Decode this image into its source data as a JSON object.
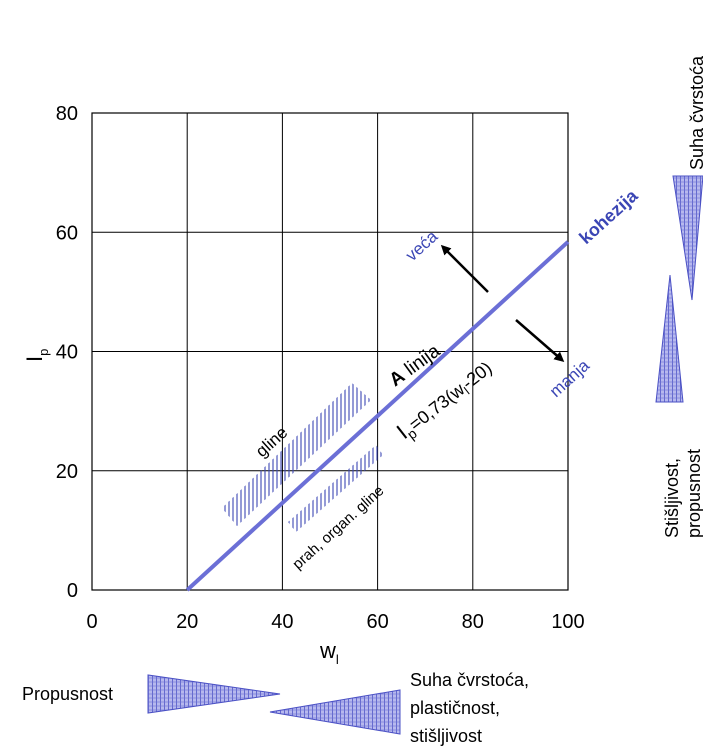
{
  "chart_data": {
    "type": "line",
    "xlabel": "w",
    "xlabel_sub": "l",
    "ylabel": "I",
    "ylabel_sub": "p",
    "xlim": [
      0,
      100
    ],
    "ylim": [
      0,
      80
    ],
    "grid": true,
    "x_ticks": [
      "0",
      "20",
      "40",
      "60",
      "80",
      "100"
    ],
    "y_ticks": [
      "0",
      "20",
      "40",
      "60",
      "80"
    ],
    "a_line": {
      "x": [
        20,
        100
      ],
      "y": [
        0,
        58.4
      ],
      "color": "#6b6fd6",
      "label_bold": "A",
      "label": " linija",
      "equation_main": "I",
      "equation_sub": "p",
      "equation_rest": "=0,73(w",
      "equation_sub2": "l",
      "equation_end": "-20)"
    },
    "regions": {
      "above_label": "gline",
      "below_label": "prah, organ. gline"
    },
    "cohesion": {
      "label": "kohezija",
      "more": "veća",
      "less": "manja"
    },
    "right_side": {
      "top_label": "Suha čvrstoća",
      "bottom_label_1": "Stišljivost,",
      "bottom_label_2": "propusnost"
    },
    "bottom_side": {
      "left_label": "Propusnost",
      "right_label_1": "Suha čvrstoća,",
      "right_label_2": "plastičnost,",
      "right_label_3": "stišljivost"
    },
    "colors": {
      "accent": "#3b46b5",
      "hatch_fill": "#8b8fe0"
    }
  }
}
